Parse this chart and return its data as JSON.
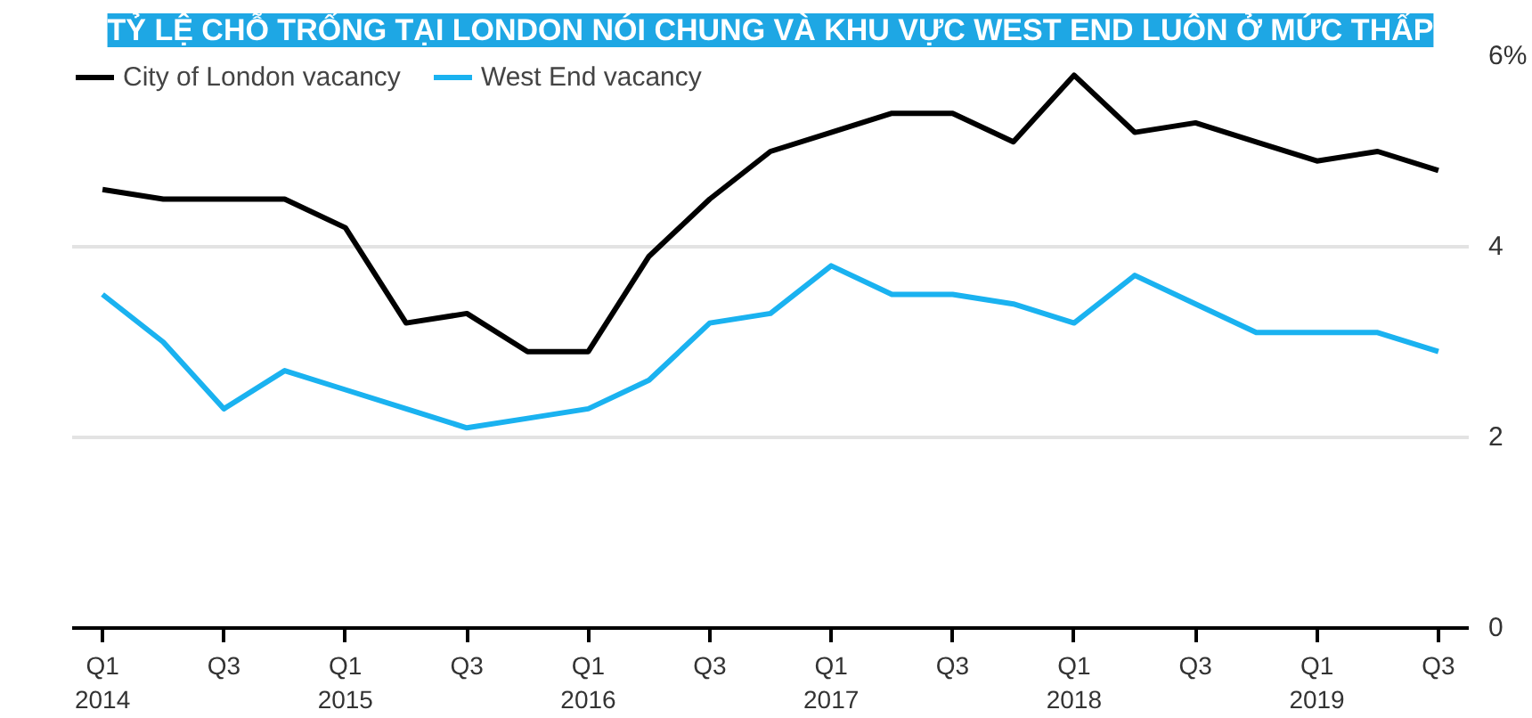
{
  "chart_data": {
    "type": "line",
    "title": "TỶ LỆ CHỖ TRỐNG TẠI LONDON NÓI CHUNG VÀ KHU VỰC WEST END LUÔN Ở MỨC THẤP",
    "categories": [
      "Q1\n2014",
      null,
      "Q3",
      null,
      "Q1\n2015",
      null,
      "Q3",
      null,
      "Q1\n2016",
      null,
      "Q3",
      null,
      "Q1\n2017",
      null,
      "Q3",
      null,
      "Q1\n2018",
      null,
      "Q3",
      null,
      "Q1\n2019",
      null,
      "Q3"
    ],
    "series": [
      {
        "name": "City of London vacancy",
        "color": "#000000",
        "values": [
          4.6,
          4.5,
          4.5,
          4.5,
          4.2,
          3.2,
          3.3,
          2.9,
          2.9,
          3.9,
          4.5,
          5.0,
          5.2,
          5.4,
          5.4,
          5.1,
          5.8,
          5.2,
          5.3,
          5.1,
          4.9,
          5.0,
          4.8
        ]
      },
      {
        "name": "West End vacancy",
        "color": "#1ab2f0",
        "values": [
          3.5,
          3.0,
          2.3,
          2.7,
          2.5,
          2.3,
          2.1,
          2.2,
          2.3,
          2.6,
          3.2,
          3.3,
          3.8,
          3.5,
          3.5,
          3.4,
          3.2,
          3.7,
          3.4,
          3.1,
          3.1,
          3.1,
          2.9
        ]
      }
    ],
    "ylim": [
      0,
      6
    ],
    "yticks": [
      0,
      2,
      4,
      {
        "value": 6,
        "label": "6%"
      }
    ],
    "grid": "y",
    "legend": "top left",
    "line_style": "solid"
  }
}
